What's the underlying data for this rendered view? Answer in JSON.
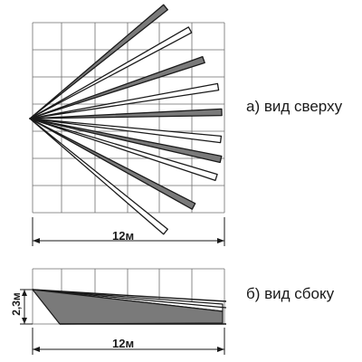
{
  "top_view": {
    "caption": "а) вид сверху",
    "dimension": "12м"
  },
  "side_view": {
    "caption": "б) вид сбоку",
    "dimension": "12м",
    "height": "2,3м"
  },
  "colors": {
    "line": "#1a1a1a",
    "grid": "#6e6e6e",
    "beam_fill": "#7a7a7a",
    "beam_white": "#ffffff"
  }
}
